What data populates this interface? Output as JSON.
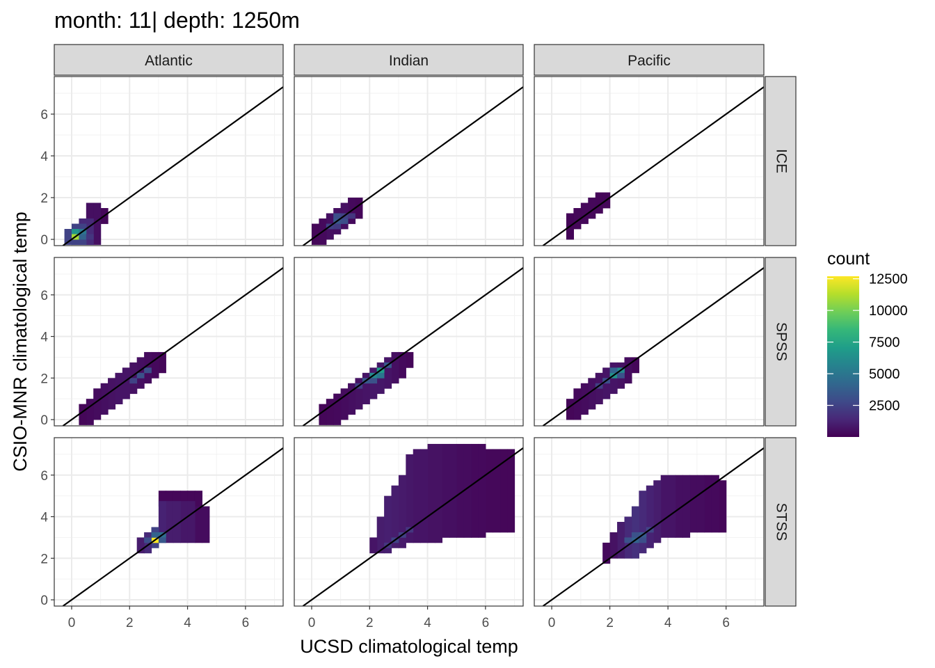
{
  "title": "month: 11| depth: 1250m",
  "chart_data": {
    "type": "heatmap",
    "title": "month: 11| depth: 1250m",
    "xlabel": "UCSD climatological temp",
    "ylabel": "CSIO-MNR climatological temp",
    "xlim": [
      -0.6,
      7.3
    ],
    "ylim": [
      -0.3,
      7.8
    ],
    "x_ticks": [
      0,
      2,
      4,
      6
    ],
    "y_ticks": [
      0,
      2,
      4,
      6
    ],
    "x_ticks_minor": [
      1,
      3,
      5,
      7
    ],
    "y_ticks_minor": [
      1,
      3,
      5,
      7
    ],
    "bin_width": 0.25,
    "columns": [
      "Atlantic",
      "Indian",
      "Pacific"
    ],
    "rows": [
      "ICE",
      "SPSS",
      "STSS"
    ],
    "reference_line": {
      "slope": 1,
      "intercept": 0,
      "color": "#000000"
    },
    "legend": {
      "title": "count",
      "position": "right",
      "range": [
        1,
        12700
      ],
      "breaks": [
        2500,
        5000,
        7500,
        10000,
        12500
      ],
      "colors": [
        "#440154",
        "#482878",
        "#3e4a89",
        "#31688e",
        "#26828e",
        "#1f9e89",
        "#35b779",
        "#6ece58",
        "#b5de2b",
        "#fde725"
      ]
    },
    "grid": true,
    "theme": "bw",
    "panels": [
      {
        "column": "Atlantic",
        "row": "ICE",
        "bands": [
          [
            0.75,
            1.25,
            0.75,
            1.5,
            200
          ],
          [
            0.5,
            1.0,
            -0.25,
            1.75,
            500
          ],
          [
            0.25,
            0.75,
            -0.25,
            1.0,
            1500
          ],
          [
            0.0,
            0.5,
            -0.25,
            0.75,
            2500
          ],
          [
            -0.25,
            0.25,
            -0.25,
            0.5,
            2500
          ]
        ],
        "cells": [
          [
            0.0,
            0.25,
            6500
          ],
          [
            0.25,
            0.25,
            5000
          ],
          [
            0.0,
            0.0,
            11000
          ],
          [
            0.25,
            0.0,
            4000
          ],
          [
            0.5,
            0.0,
            2000
          ]
        ]
      },
      {
        "column": "Indian",
        "row": "ICE",
        "bands": [
          [
            1.5,
            1.75,
            1.0,
            2.0,
            200
          ],
          [
            1.25,
            1.5,
            0.75,
            2.0,
            300
          ],
          [
            1.0,
            1.25,
            0.5,
            1.75,
            500
          ],
          [
            0.75,
            1.0,
            0.25,
            1.5,
            500
          ],
          [
            0.5,
            0.75,
            0.0,
            1.25,
            500
          ],
          [
            0.25,
            0.5,
            -0.25,
            1.0,
            300
          ],
          [
            0.0,
            0.25,
            -0.25,
            0.75,
            200
          ]
        ],
        "cells": [
          [
            0.75,
            0.75,
            3500
          ],
          [
            1.0,
            0.75,
            3000
          ],
          [
            0.75,
            1.0,
            3000
          ],
          [
            1.0,
            1.0,
            2500
          ],
          [
            0.5,
            0.5,
            2500
          ],
          [
            0.75,
            0.5,
            2200
          ],
          [
            1.25,
            1.0,
            2000
          ]
        ]
      },
      {
        "column": "Pacific",
        "row": "ICE",
        "bands": [
          [
            1.75,
            2.0,
            1.5,
            2.25,
            200
          ],
          [
            1.5,
            1.75,
            1.25,
            2.25,
            200
          ],
          [
            1.25,
            1.5,
            1.0,
            2.0,
            250
          ],
          [
            1.0,
            1.25,
            0.75,
            1.75,
            250
          ],
          [
            0.75,
            1.0,
            0.5,
            1.5,
            200
          ],
          [
            0.5,
            0.75,
            0.0,
            1.25,
            150
          ]
        ],
        "cells": []
      },
      {
        "column": "Atlantic",
        "row": "SPSS",
        "bands": [
          [
            3.0,
            3.25,
            2.25,
            3.25,
            200
          ],
          [
            2.75,
            3.0,
            2.0,
            3.25,
            300
          ],
          [
            2.5,
            2.75,
            1.75,
            3.25,
            400
          ],
          [
            2.25,
            2.5,
            1.5,
            3.0,
            500
          ],
          [
            2.0,
            2.25,
            1.25,
            2.75,
            600
          ],
          [
            1.75,
            2.0,
            1.0,
            2.5,
            700
          ],
          [
            1.5,
            1.75,
            0.75,
            2.25,
            700
          ],
          [
            1.25,
            1.5,
            0.5,
            2.0,
            600
          ],
          [
            1.0,
            1.25,
            0.25,
            1.75,
            500
          ],
          [
            0.75,
            1.0,
            0.0,
            1.5,
            400
          ],
          [
            0.5,
            0.75,
            -0.25,
            1.0,
            300
          ],
          [
            0.25,
            0.5,
            -0.25,
            0.75,
            200
          ]
        ],
        "cells": [
          [
            2.25,
            2.0,
            3200
          ],
          [
            2.5,
            2.25,
            3000
          ],
          [
            2.0,
            1.75,
            2500
          ]
        ]
      },
      {
        "column": "Indian",
        "row": "SPSS",
        "bands": [
          [
            3.25,
            3.5,
            2.5,
            3.25,
            200
          ],
          [
            3.0,
            3.25,
            2.0,
            3.25,
            300
          ],
          [
            2.75,
            3.0,
            1.75,
            3.25,
            500
          ],
          [
            2.5,
            2.75,
            1.5,
            3.0,
            700
          ],
          [
            2.25,
            2.5,
            1.25,
            2.75,
            800
          ],
          [
            2.0,
            2.25,
            1.0,
            2.5,
            800
          ],
          [
            1.75,
            2.0,
            0.75,
            2.25,
            700
          ],
          [
            1.5,
            1.75,
            0.5,
            2.0,
            600
          ],
          [
            1.25,
            1.5,
            0.25,
            1.75,
            500
          ],
          [
            1.0,
            1.25,
            0.0,
            1.5,
            400
          ],
          [
            0.75,
            1.0,
            -0.25,
            1.25,
            300
          ],
          [
            0.5,
            0.75,
            -0.25,
            1.0,
            250
          ],
          [
            0.25,
            0.5,
            -0.25,
            0.75,
            200
          ]
        ],
        "cells": [
          [
            2.25,
            2.25,
            7000
          ],
          [
            2.0,
            2.0,
            6000
          ],
          [
            2.25,
            2.0,
            5000
          ],
          [
            1.75,
            1.75,
            3500
          ],
          [
            2.0,
            1.75,
            3200
          ],
          [
            2.5,
            2.5,
            3500
          ],
          [
            1.5,
            1.5,
            2400
          ]
        ]
      },
      {
        "column": "Pacific",
        "row": "SPSS",
        "bands": [
          [
            2.75,
            3.0,
            2.25,
            3.0,
            200
          ],
          [
            2.5,
            2.75,
            1.75,
            3.0,
            400
          ],
          [
            2.25,
            2.5,
            1.5,
            2.75,
            600
          ],
          [
            2.0,
            2.25,
            1.25,
            2.75,
            700
          ],
          [
            1.75,
            2.0,
            1.0,
            2.5,
            700
          ],
          [
            1.5,
            1.75,
            0.75,
            2.25,
            600
          ],
          [
            1.25,
            1.5,
            0.5,
            2.0,
            500
          ],
          [
            1.0,
            1.25,
            0.25,
            1.75,
            400
          ],
          [
            0.75,
            1.0,
            0.0,
            1.5,
            300
          ],
          [
            0.5,
            0.75,
            0.0,
            1.0,
            200
          ]
        ],
        "cells": [
          [
            2.0,
            2.0,
            6500
          ],
          [
            2.25,
            2.25,
            6000
          ],
          [
            2.0,
            2.25,
            4000
          ],
          [
            1.75,
            1.75,
            3000
          ],
          [
            2.25,
            2.0,
            3200
          ],
          [
            1.5,
            1.5,
            2400
          ]
        ]
      },
      {
        "column": "Atlantic",
        "row": "STSS",
        "bands": [
          [
            3.0,
            4.5,
            4.5,
            5.25,
            200
          ],
          [
            4.25,
            4.75,
            2.75,
            4.5,
            400
          ],
          [
            3.75,
            4.25,
            2.75,
            4.75,
            800
          ],
          [
            3.25,
            3.75,
            2.75,
            4.75,
            1000
          ],
          [
            3.0,
            3.25,
            2.75,
            4.75,
            1200
          ],
          [
            2.75,
            3.0,
            2.5,
            3.5,
            2500
          ],
          [
            2.5,
            2.75,
            2.25,
            3.25,
            1500
          ],
          [
            2.25,
            2.5,
            2.25,
            3.0,
            1000
          ]
        ],
        "cells": [
          [
            2.75,
            2.75,
            12700
          ],
          [
            3.0,
            3.0,
            4500
          ],
          [
            2.75,
            3.0,
            4000
          ],
          [
            2.5,
            2.75,
            3000
          ],
          [
            3.0,
            2.75,
            3500
          ]
        ]
      },
      {
        "column": "Indian",
        "row": "STSS",
        "bands": [
          [
            6.5,
            7.0,
            3.25,
            7.25,
            200
          ],
          [
            6.0,
            6.5,
            3.25,
            7.25,
            250
          ],
          [
            5.5,
            6.0,
            3.0,
            7.5,
            300
          ],
          [
            5.0,
            5.5,
            3.0,
            7.5,
            400
          ],
          [
            4.5,
            5.0,
            3.0,
            7.5,
            500
          ],
          [
            4.0,
            4.5,
            2.75,
            7.5,
            600
          ],
          [
            3.5,
            4.0,
            2.75,
            7.25,
            700
          ],
          [
            3.25,
            3.5,
            2.75,
            7.0,
            800
          ],
          [
            3.0,
            3.25,
            2.5,
            6.0,
            900
          ],
          [
            2.75,
            3.0,
            2.5,
            5.5,
            1000
          ],
          [
            2.5,
            2.75,
            2.25,
            5.0,
            1100
          ],
          [
            2.25,
            2.5,
            2.25,
            4.0,
            1000
          ],
          [
            2.0,
            2.25,
            2.25,
            3.0,
            700
          ]
        ],
        "cells": [
          [
            2.75,
            2.75,
            2500
          ],
          [
            3.0,
            3.0,
            2400
          ],
          [
            2.5,
            2.5,
            2000
          ],
          [
            3.25,
            3.25,
            2000
          ]
        ]
      },
      {
        "column": "Pacific",
        "row": "STSS",
        "bands": [
          [
            5.75,
            6.0,
            3.25,
            5.75,
            200
          ],
          [
            5.25,
            5.75,
            3.25,
            6.0,
            300
          ],
          [
            4.75,
            5.25,
            3.25,
            6.0,
            400
          ],
          [
            4.25,
            4.75,
            3.0,
            6.0,
            500
          ],
          [
            3.75,
            4.25,
            3.0,
            6.0,
            700
          ],
          [
            3.5,
            3.75,
            2.75,
            5.75,
            1000
          ],
          [
            3.25,
            3.5,
            2.5,
            5.5,
            1200
          ],
          [
            3.0,
            3.25,
            2.25,
            5.25,
            1500
          ],
          [
            2.75,
            3.0,
            2.0,
            4.5,
            1800
          ],
          [
            2.5,
            2.75,
            2.0,
            4.0,
            1500
          ],
          [
            2.25,
            2.5,
            2.0,
            3.75,
            1000
          ],
          [
            2.0,
            2.25,
            2.0,
            3.25,
            600
          ],
          [
            1.75,
            2.0,
            1.75,
            2.75,
            300
          ]
        ],
        "cells": [
          [
            2.75,
            2.75,
            4000
          ],
          [
            3.0,
            3.0,
            3600
          ],
          [
            2.5,
            2.75,
            3200
          ],
          [
            3.0,
            2.75,
            3000
          ],
          [
            2.75,
            3.0,
            3200
          ],
          [
            3.25,
            3.25,
            2600
          ]
        ]
      }
    ]
  }
}
